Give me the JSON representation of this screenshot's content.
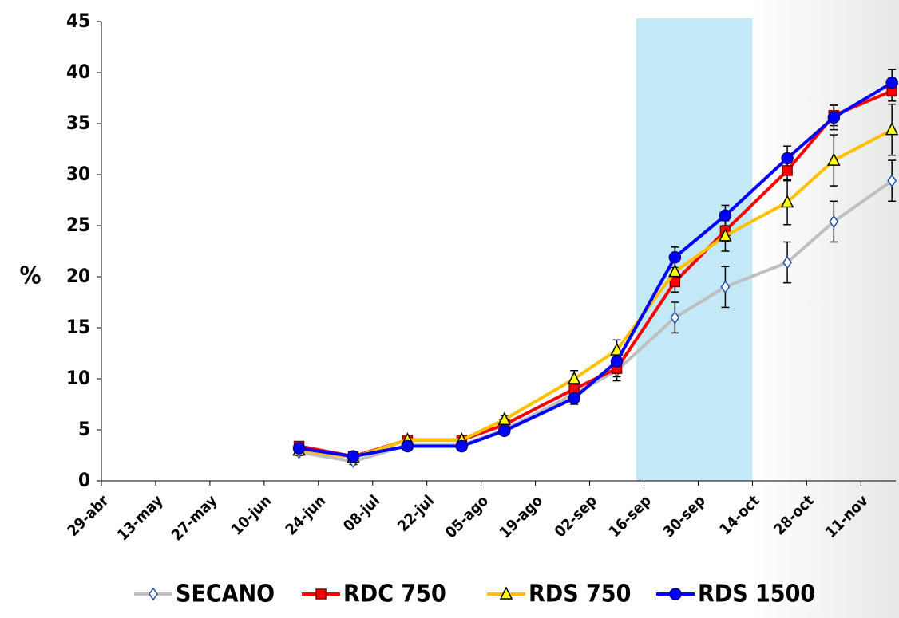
{
  "chart_data": {
    "type": "line",
    "y_label": "%",
    "xlim": [
      119,
      324
    ],
    "ylim": [
      0,
      45
    ],
    "xticks": [
      {
        "value": 119,
        "label": "29-abr"
      },
      {
        "value": 133,
        "label": "13-may"
      },
      {
        "value": 147,
        "label": "27-may"
      },
      {
        "value": 161,
        "label": "10-jun"
      },
      {
        "value": 175,
        "label": "24-jun"
      },
      {
        "value": 189,
        "label": "08-jul"
      },
      {
        "value": 203,
        "label": "22-jul"
      },
      {
        "value": 217,
        "label": "05-ago"
      },
      {
        "value": 231,
        "label": "19-ago"
      },
      {
        "value": 245,
        "label": "02-sep"
      },
      {
        "value": 259,
        "label": "16-sep"
      },
      {
        "value": 273,
        "label": "30-sep"
      },
      {
        "value": 287,
        "label": "14-oct"
      },
      {
        "value": 301,
        "label": "28-oct"
      },
      {
        "value": 315,
        "label": "11-nov"
      }
    ],
    "yticks": [
      0,
      5,
      10,
      15,
      20,
      25,
      30,
      35,
      40,
      45
    ],
    "shade": [
      257,
      287
    ],
    "shade_color": "#c3e8f6",
    "x": [
      170,
      184,
      198,
      212,
      223,
      241,
      252,
      267,
      280,
      296,
      308,
      323
    ],
    "series": [
      {
        "name": "SECANO",
        "color": "#bfbfbf",
        "marker": "diamond",
        "marker_color": "#ffffff",
        "marker_edge": "#1f4fa0",
        "values": [
          2.8,
          1.9,
          3.5,
          3.5,
          5.0,
          8.5,
          10.8,
          16,
          19,
          21.4,
          25.4,
          29.4
        ],
        "errors": [
          0.3,
          0.3,
          0.3,
          0.3,
          0.3,
          0.5,
          1.0,
          1.5,
          2,
          2,
          2,
          2
        ]
      },
      {
        "name": "RDC 750",
        "color": "#ff0000",
        "marker": "square",
        "marker_color": "#ff0000",
        "marker_edge": "#800000",
        "values": [
          3.4,
          2.4,
          4.0,
          4.0,
          5.5,
          9.0,
          11.0,
          19.5,
          24.5,
          30.4,
          35.8,
          38.2
        ],
        "errors": [
          0.4,
          0.3,
          0.4,
          0.4,
          0.4,
          0.5,
          0.8,
          1,
          1,
          1,
          1,
          1
        ]
      },
      {
        "name": "RDS 750",
        "color": "#ffc000",
        "marker": "triangle",
        "marker_color": "#ffff00",
        "marker_edge": "#000000",
        "values": [
          3.0,
          2.3,
          4.0,
          4.0,
          6.0,
          10.0,
          12.8,
          20.5,
          24.0,
          27.3,
          31.4,
          34.4
        ],
        "errors": [
          0.4,
          0.3,
          0.4,
          0.4,
          0.4,
          0.8,
          1,
          1,
          1.5,
          2.2,
          2.5,
          2.5
        ]
      },
      {
        "name": "RDS 1500",
        "color": "#0000ff",
        "marker": "circle",
        "marker_color": "#0000ff",
        "marker_edge": "#000080",
        "values": [
          3.2,
          2.4,
          3.4,
          3.4,
          4.9,
          8.1,
          11.7,
          21.9,
          26.0,
          31.6,
          35.6,
          39.0
        ],
        "errors": [
          0.3,
          0.3,
          0.3,
          0.3,
          0.3,
          0.6,
          0.8,
          1,
          1,
          1.2,
          1.2,
          1.3
        ]
      }
    ]
  }
}
